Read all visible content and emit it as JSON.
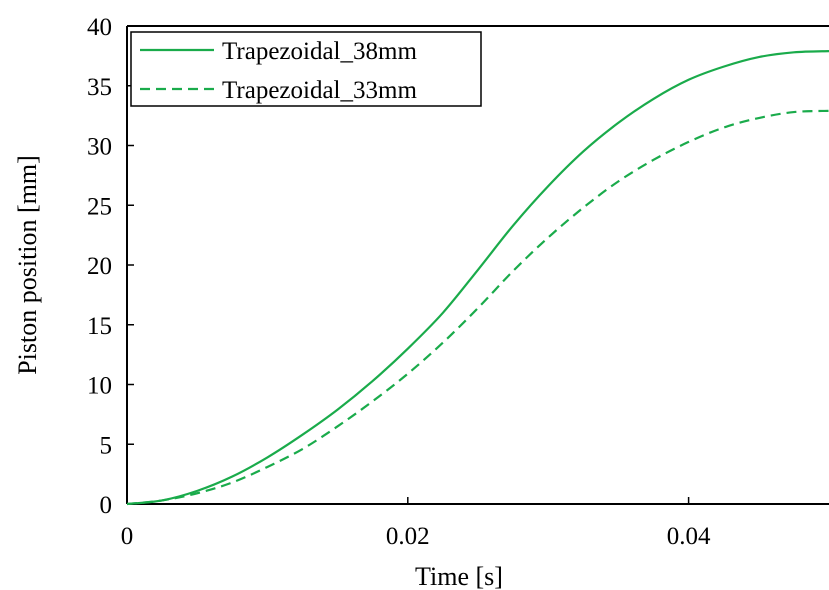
{
  "chart_data": {
    "type": "line",
    "title": "",
    "xlabel": "Time [s]",
    "ylabel": "Piston position [mm]",
    "xlim": [
      0,
      0.05
    ],
    "ylim": [
      0,
      40
    ],
    "xticks": [
      0,
      0.02,
      0.04
    ],
    "xtick_labels": [
      "0",
      "0.02",
      "0.04"
    ],
    "yticks": [
      0,
      5,
      10,
      15,
      20,
      25,
      30,
      35,
      40
    ],
    "ytick_labels": [
      "0",
      "5",
      "10",
      "15",
      "20",
      "25",
      "30",
      "35",
      "40"
    ],
    "grid": false,
    "legend_position": "top-left",
    "series": [
      {
        "name": "Trapezoidal_38mm",
        "line_style": "solid",
        "color": "#1aab4b",
        "x": [
          0,
          0.0025,
          0.005,
          0.0075,
          0.01,
          0.0125,
          0.015,
          0.0175,
          0.02,
          0.0225,
          0.025,
          0.0275,
          0.03,
          0.0325,
          0.035,
          0.0375,
          0.04,
          0.0425,
          0.045,
          0.0475,
          0.05
        ],
        "y": [
          0,
          0.3,
          1.1,
          2.3,
          3.9,
          5.8,
          7.9,
          10.3,
          13.0,
          16.0,
          19.6,
          23.3,
          26.6,
          29.5,
          31.9,
          33.9,
          35.5,
          36.6,
          37.4,
          37.8,
          37.9
        ]
      },
      {
        "name": "Trapezoidal_33mm",
        "line_style": "dashed",
        "color": "#1aab4b",
        "x": [
          0,
          0.0025,
          0.005,
          0.0075,
          0.01,
          0.0125,
          0.015,
          0.0175,
          0.02,
          0.0225,
          0.025,
          0.0275,
          0.03,
          0.0325,
          0.035,
          0.0375,
          0.04,
          0.0425,
          0.045,
          0.0475,
          0.05
        ],
        "y": [
          0,
          0.3,
          0.9,
          1.8,
          3.1,
          4.6,
          6.5,
          8.6,
          10.9,
          13.5,
          16.4,
          19.5,
          22.3,
          24.8,
          27.0,
          28.8,
          30.3,
          31.5,
          32.3,
          32.8,
          32.9
        ]
      }
    ]
  }
}
